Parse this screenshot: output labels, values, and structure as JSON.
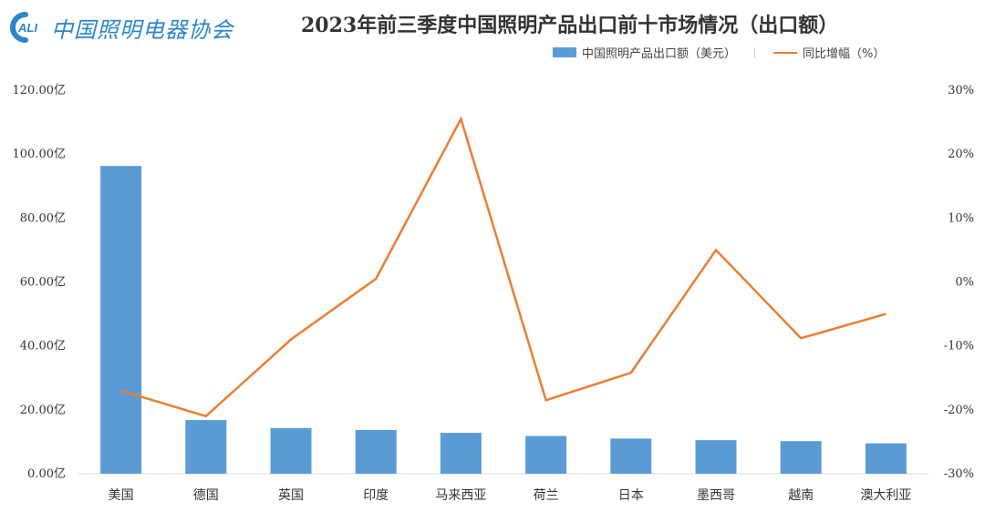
{
  "logo": {
    "badge_text": "CALI",
    "text": "中国照明电器协会"
  },
  "chart_data": {
    "type": "bar",
    "title": "2023年前三季度中国照明产品出口前十市场情况（出口额）",
    "categories": [
      "美国",
      "德国",
      "英国",
      "印度",
      "马来西亚",
      "荷兰",
      "日本",
      "墨西哥",
      "越南",
      "澳大利亚"
    ],
    "series": [
      {
        "name": "中国照明产品出口额（美元）",
        "type": "bar",
        "axis": "left",
        "color": "#5b9bd5",
        "values": [
          96.3,
          16.8,
          14.3,
          13.7,
          12.8,
          11.8,
          11.0,
          10.5,
          10.2,
          9.5
        ]
      },
      {
        "name": "同比增幅（%）",
        "type": "line",
        "axis": "right",
        "color": "#ed7d31",
        "values": [
          -17,
          -21,
          -9,
          0.5,
          25.5,
          -18.5,
          -14.2,
          5,
          -8.8,
          -5
        ]
      }
    ],
    "left_axis": {
      "min": 0,
      "max": 120,
      "ticks": [
        "0.00亿",
        "20.00亿",
        "40.00亿",
        "60.00亿",
        "80.00亿",
        "100.00亿",
        "120.00亿"
      ]
    },
    "right_axis": {
      "min": -30,
      "max": 30,
      "ticks": [
        "-30%",
        "-20%",
        "-10%",
        "0%",
        "10%",
        "20%",
        "30%"
      ]
    },
    "grid": false,
    "legend_position": "top-right"
  }
}
